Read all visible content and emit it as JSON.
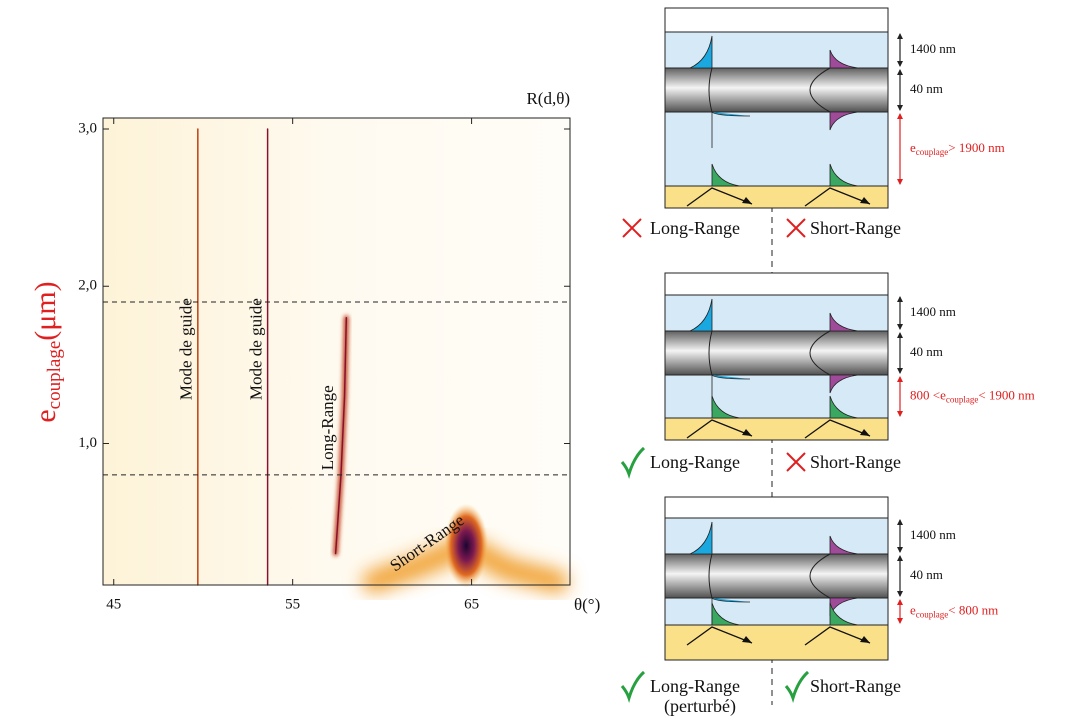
{
  "chart_data": {
    "type": "heatmap",
    "title": "R(d,θ)",
    "x_label": "θ(°)",
    "y_label": {
      "base": "e",
      "sub": "couplage",
      "unit": "(μm)"
    },
    "xlim": [
      44.4,
      70.5
    ],
    "ylim": [
      0.1,
      3.07
    ],
    "xticks": [
      45,
      55,
      65
    ],
    "yticks": [
      {
        "value": 1,
        "label": "1,0"
      },
      {
        "value": 2,
        "label": "2,0"
      },
      {
        "value": 3,
        "label": "3,0"
      }
    ],
    "hlines": [
      1.9,
      0.8
    ],
    "series": [
      {
        "name": "Mode de guide",
        "color": "#e08a10",
        "x": [
          49.7,
          49.7,
          49.7,
          49.7
        ],
        "values": [
          0.1,
          1.0,
          2.0,
          3.0
        ]
      },
      {
        "name": "Mode de guide",
        "color": "#d24a20",
        "x": [
          53.6,
          53.6,
          53.6,
          53.6
        ],
        "values": [
          0.1,
          1.0,
          2.0,
          3.0
        ]
      },
      {
        "name": "Long-Range",
        "color": "#c0401a",
        "x": [
          57.4,
          57.7,
          57.9,
          58.0
        ],
        "values": [
          0.3,
          0.8,
          1.3,
          1.8
        ]
      },
      {
        "name": "Short-Range",
        "color": "#f0a030",
        "x": [
          59.5,
          62.0,
          64.7,
          67.0,
          69.8
        ],
        "values": [
          0.12,
          0.22,
          0.35,
          0.2,
          0.12
        ]
      }
    ]
  },
  "diagram": {
    "panels": [
      {
        "top": "1400 nm",
        "metal": "40 nm",
        "coupling": {
          "before": "e",
          "sub": "couplage",
          "after": "> 1900 nm"
        },
        "long": {
          "label": "Long-Range",
          "ok": false
        },
        "short": {
          "label": "Short-Range",
          "ok": false
        }
      },
      {
        "top": "1400 nm",
        "metal": "40 nm",
        "coupling": {
          "before": "800 <e",
          "sub": "couplage",
          "after": "< 1900 nm"
        },
        "long": {
          "label": "Long-Range",
          "ok": true
        },
        "short": {
          "label": "Short-Range",
          "ok": false
        }
      },
      {
        "top": "1400 nm",
        "metal": "40 nm",
        "coupling": {
          "before": "e",
          "sub": "couplage",
          "after": "< 800 nm"
        },
        "long": {
          "label": "Long-Range",
          "ok": true,
          "note": "(perturbé)"
        },
        "short": {
          "label": "Short-Range",
          "ok": true
        }
      }
    ]
  }
}
